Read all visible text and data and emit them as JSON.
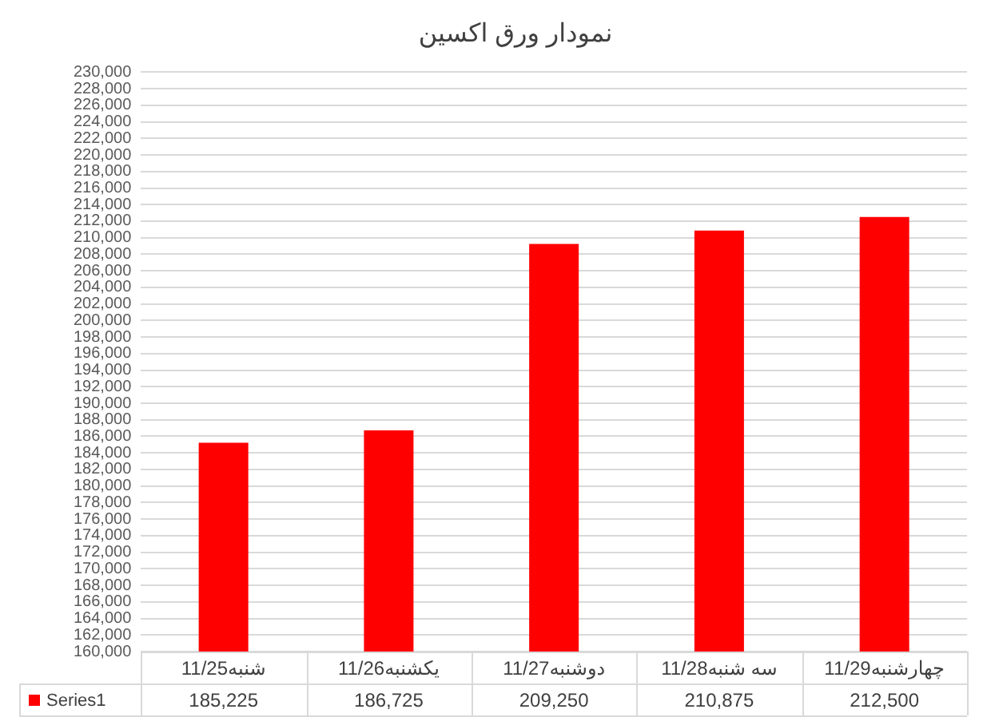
{
  "chart_data": {
    "type": "bar",
    "title": "نمودار ورق اکسین",
    "categories": [
      "شنبه11/25",
      "یکشنبه11/26",
      "دوشنبه11/27",
      "سه شنبه11/28",
      "چهارشنبه11/29"
    ],
    "series": [
      {
        "name": "Series1",
        "color": "#ff0000",
        "values": [
          185225,
          186725,
          209250,
          210875,
          212500
        ],
        "value_labels": [
          "185,225",
          "186,725",
          "209,250",
          "210,875",
          "212,500"
        ]
      }
    ],
    "ylim": [
      160000,
      230000
    ],
    "yticks": [
      {
        "value": 160000,
        "label": "160,000"
      },
      {
        "value": 162000,
        "label": "162,000"
      },
      {
        "value": 164000,
        "label": "164,000"
      },
      {
        "value": 166000,
        "label": "166,000"
      },
      {
        "value": 168000,
        "label": "168,000"
      },
      {
        "value": 170000,
        "label": "170,000"
      },
      {
        "value": 172000,
        "label": "172,000"
      },
      {
        "value": 174000,
        "label": "174,000"
      },
      {
        "value": 176000,
        "label": "176,000"
      },
      {
        "value": 178000,
        "label": "178,000"
      },
      {
        "value": 180000,
        "label": "180,000"
      },
      {
        "value": 182000,
        "label": "182,000"
      },
      {
        "value": 184000,
        "label": "184,000"
      },
      {
        "value": 186000,
        "label": "186,000"
      },
      {
        "value": 188000,
        "label": "188,000"
      },
      {
        "value": 190000,
        "label": "190,000"
      },
      {
        "value": 192000,
        "label": "192,000"
      },
      {
        "value": 194000,
        "label": "194,000"
      },
      {
        "value": 196000,
        "label": "196,000"
      },
      {
        "value": 198000,
        "label": "198,000"
      },
      {
        "value": 200000,
        "label": "200,000"
      },
      {
        "value": 202000,
        "label": "202,000"
      },
      {
        "value": 204000,
        "label": "204,000"
      },
      {
        "value": 206000,
        "label": "206,000"
      },
      {
        "value": 208000,
        "label": "208,000"
      },
      {
        "value": 210000,
        "label": "210,000"
      },
      {
        "value": 212000,
        "label": "212,000"
      },
      {
        "value": 214000,
        "label": "214,000"
      },
      {
        "value": 216000,
        "label": "216,000"
      },
      {
        "value": 218000,
        "label": "218,000"
      },
      {
        "value": 220000,
        "label": "220,000"
      },
      {
        "value": 222000,
        "label": "222,000"
      },
      {
        "value": 224000,
        "label": "224,000"
      },
      {
        "value": 226000,
        "label": "226,000"
      },
      {
        "value": 228000,
        "label": "228,000"
      },
      {
        "value": 230000,
        "label": "230,000"
      }
    ],
    "grid": "y",
    "legend": "bottom"
  }
}
